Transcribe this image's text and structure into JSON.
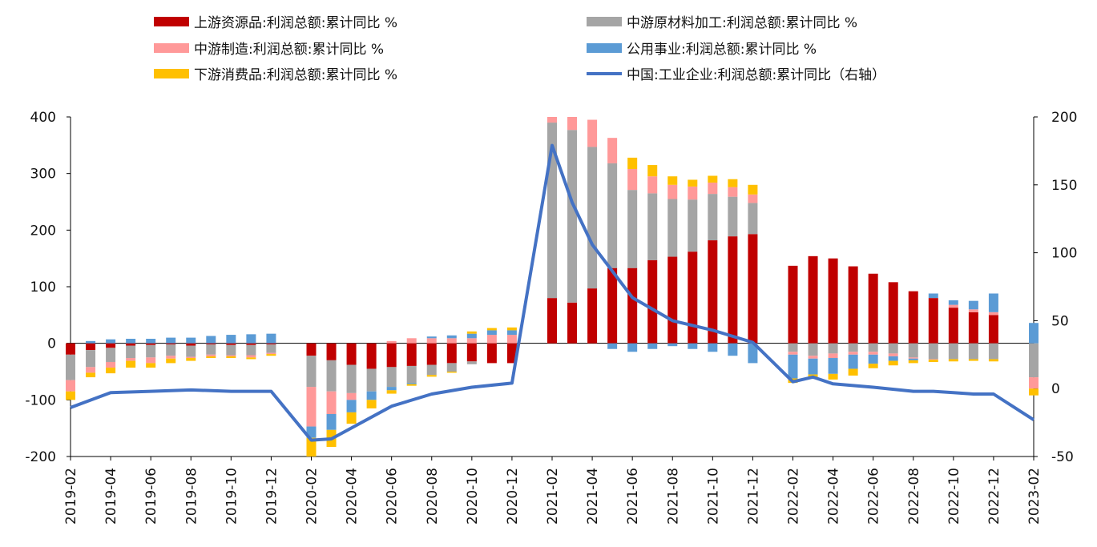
{
  "chart_data": {
    "type": "bar",
    "stacked": true,
    "legend": [
      {
        "label": "上游资源品:利润总额:累计同比 %",
        "color": "#C00000",
        "kind": "bar"
      },
      {
        "label": "中游原材料加工:利润总额:累计同比 %",
        "color": "#A5A5A5",
        "kind": "bar"
      },
      {
        "label": "中游制造:利润总额:累计同比 %",
        "color": "#FF9999",
        "kind": "bar"
      },
      {
        "label": "公用事业:利润总额:累计同比 %",
        "color": "#5B9BD5",
        "kind": "bar"
      },
      {
        "label": "下游消费品:利润总额:累计同比 %",
        "color": "#FFC000",
        "kind": "bar"
      },
      {
        "label": "中国:工业企业:利润总额:累计同比（右轴）",
        "color": "#4472C4",
        "kind": "line"
      }
    ],
    "x": [
      "2019-02",
      "2019-03",
      "2019-04",
      "2019-05",
      "2019-06",
      "2019-07",
      "2019-08",
      "2019-09",
      "2019-10",
      "2019-11",
      "2019-12",
      "2020-01",
      "2020-02",
      "2020-03",
      "2020-04",
      "2020-05",
      "2020-06",
      "2020-07",
      "2020-08",
      "2020-09",
      "2020-10",
      "2020-11",
      "2020-12",
      "2021-01",
      "2021-02",
      "2021-03",
      "2021-04",
      "2021-05",
      "2021-06",
      "2021-07",
      "2021-08",
      "2021-09",
      "2021-10",
      "2021-11",
      "2021-12",
      "2022-01",
      "2022-02",
      "2022-03",
      "2022-04",
      "2022-05",
      "2022-06",
      "2022-07",
      "2022-08",
      "2022-09",
      "2022-10",
      "2022-11",
      "2022-12",
      "2023-01",
      "2023-02"
    ],
    "x_tick_labels": [
      "2019-02",
      "2019-04",
      "2019-06",
      "2019-08",
      "2019-10",
      "2019-12",
      "2020-02",
      "2020-04",
      "2020-06",
      "2020-08",
      "2020-10",
      "2020-12",
      "2021-02",
      "2021-04",
      "2021-06",
      "2021-08",
      "2021-10",
      "2021-12",
      "2022-02",
      "2022-04",
      "2022-06",
      "2022-08",
      "2022-10",
      "2022-12",
      "2023-02"
    ],
    "series": [
      {
        "name": "上游资源品:利润总额:累计同比 %",
        "values": [
          -20,
          -12,
          -8,
          -4,
          -3,
          -2,
          -4,
          -2,
          -3,
          -3,
          -2,
          null,
          -22,
          -30,
          -38,
          -45,
          -42,
          -40,
          -38,
          -35,
          -32,
          -35,
          -35,
          null,
          80,
          72,
          97,
          133,
          133,
          147,
          153,
          162,
          182,
          189,
          193,
          null,
          137,
          154,
          150,
          136,
          123,
          108,
          92,
          80,
          63,
          55,
          50,
          null,
          0
        ]
      },
      {
        "name": "中游原材料加工:利润总额:累计同比 %",
        "values": [
          -45,
          -30,
          -25,
          -22,
          -22,
          -20,
          -20,
          -18,
          -18,
          -18,
          -15,
          null,
          -55,
          -55,
          -50,
          -40,
          -35,
          -30,
          -18,
          -15,
          -5,
          0,
          0,
          null,
          310,
          305,
          250,
          185,
          138,
          118,
          102,
          92,
          82,
          70,
          55,
          null,
          -15,
          -22,
          -18,
          -15,
          -15,
          -18,
          -25,
          -28,
          -28,
          -28,
          -28,
          null,
          -60
        ]
      },
      {
        "name": "中游制造:利润总额:累计同比 %",
        "values": [
          -20,
          -10,
          -10,
          -5,
          -10,
          -5,
          -2,
          -3,
          -2,
          -4,
          -2,
          null,
          -70,
          -40,
          -12,
          0,
          4,
          9,
          9,
          9,
          9,
          15,
          15,
          null,
          10,
          25,
          48,
          45,
          37,
          30,
          25,
          23,
          20,
          17,
          15,
          null,
          -5,
          -5,
          -8,
          -5,
          -5,
          -5,
          -2,
          -1,
          5,
          5,
          5,
          null,
          -20
        ]
      },
      {
        "name": "公用事业:利润总额:累计同比 %",
        "values": [
          0,
          4,
          7,
          8,
          8,
          10,
          10,
          13,
          15,
          16,
          17,
          null,
          -20,
          -28,
          -22,
          -15,
          -6,
          -2,
          3,
          5,
          8,
          8,
          8,
          null,
          0,
          0,
          0,
          -10,
          -15,
          -10,
          -5,
          -10,
          -15,
          -22,
          -35,
          null,
          -42,
          -28,
          -28,
          -25,
          -16,
          -8,
          -3,
          8,
          8,
          15,
          33,
          null,
          36
        ]
      },
      {
        "name": "下游消费品:利润总额:累计同比 %",
        "values": [
          -15,
          -8,
          -10,
          -12,
          -8,
          -8,
          -5,
          -3,
          -3,
          -3,
          -3,
          null,
          -35,
          -30,
          -20,
          -15,
          -6,
          -3,
          -3,
          -2,
          4,
          4,
          5,
          null,
          0,
          0,
          0,
          0,
          20,
          20,
          15,
          12,
          12,
          14,
          17,
          null,
          -8,
          -5,
          -10,
          -12,
          -8,
          -8,
          -5,
          -4,
          -4,
          -3,
          -4,
          null,
          -12
        ]
      },
      {
        "name": "中国:工业企业:利润总额:累计同比（右轴）",
        "axis": "right",
        "values": [
          -14,
          null,
          -3,
          null,
          -2,
          null,
          -1,
          null,
          -2,
          null,
          -2,
          null,
          -38,
          -37,
          null,
          null,
          -13,
          null,
          -4,
          null,
          1,
          null,
          4,
          null,
          179,
          137,
          106,
          null,
          67,
          null,
          50,
          null,
          43,
          null,
          34,
          null,
          5,
          8.5,
          3.5,
          null,
          1,
          null,
          -2,
          -2,
          -3,
          -4,
          -4,
          null,
          -23
        ]
      }
    ],
    "y_left": {
      "min": -200,
      "max": 400,
      "ticks": [
        -200,
        -100,
        0,
        100,
        200,
        300,
        400
      ],
      "tick_labels": [
        "-200",
        "-100",
        "0",
        "100",
        "200",
        "300",
        "400"
      ]
    },
    "y_right": {
      "min": -50,
      "max": 200,
      "ticks": [
        -50,
        0,
        50,
        100,
        150,
        200
      ],
      "tick_labels": [
        "-50",
        "0",
        "50",
        "100",
        "150",
        "200"
      ]
    }
  }
}
